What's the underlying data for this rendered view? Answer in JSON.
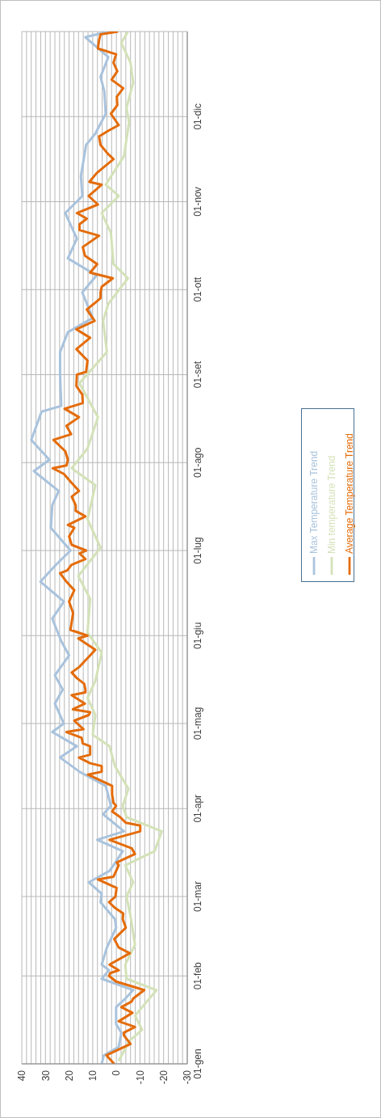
{
  "chart_data": {
    "type": "line",
    "orientation": "horizontal",
    "ylim": [
      "--01-01",
      "--12-31"
    ],
    "yticks": [
      {
        "value": "--01-01",
        "label": "01-gen"
      },
      {
        "value": "--02-01",
        "label": "01-feb"
      },
      {
        "value": "--03-01",
        "label": "01-mar"
      },
      {
        "value": "--04-01",
        "label": "01-apr"
      },
      {
        "value": "--05-01",
        "label": "01-mag"
      },
      {
        "value": "--06-01",
        "label": "01-giu"
      },
      {
        "value": "--07-01",
        "label": "01-lug"
      },
      {
        "value": "--08-01",
        "label": "01-ago"
      },
      {
        "value": "--09-01",
        "label": "01-set"
      },
      {
        "value": "--10-01",
        "label": "01-ott"
      },
      {
        "value": "--11-01",
        "label": "01-nov"
      },
      {
        "value": "--12-01",
        "label": "01-dic"
      }
    ],
    "xlim": [
      40,
      -30
    ],
    "xticks": [
      -30,
      {
        "value": -28,
        "label": null
      },
      {
        "value": -26,
        "label": null
      },
      {
        "value": -24,
        "label": null
      },
      {
        "value": -22,
        "label": null
      },
      -20,
      {
        "value": -18,
        "label": null
      },
      {
        "value": -16,
        "label": null
      },
      {
        "value": -14,
        "label": null
      },
      {
        "value": -12,
        "label": null
      },
      -10,
      {
        "value": -8,
        "label": null
      },
      {
        "value": -6,
        "label": null
      },
      {
        "value": -4,
        "label": null
      },
      {
        "value": -2,
        "label": null
      },
      0,
      {
        "value": 2,
        "label": null
      },
      {
        "value": 4,
        "label": null
      },
      {
        "value": 6,
        "label": null
      },
      {
        "value": 8,
        "label": null
      },
      10,
      {
        "value": 12,
        "label": null
      },
      {
        "value": 14,
        "label": null
      },
      {
        "value": 16,
        "label": null
      },
      {
        "value": 18,
        "label": null
      },
      20,
      {
        "value": 22,
        "label": null
      },
      {
        "value": 24,
        "label": null
      },
      {
        "value": 26,
        "label": null
      },
      {
        "value": 28,
        "label": null
      },
      30,
      {
        "value": 32,
        "label": null
      },
      {
        "value": 34,
        "label": null
      },
      {
        "value": 36,
        "label": null
      },
      {
        "value": 38,
        "label": null
      },
      40
    ],
    "grid": true,
    "legend": "right",
    "line_style": "solid",
    "series": [
      {
        "name": "Max Temperature Trend",
        "color": "#a9c3dd",
        "x": [
          "--01-01",
          "--01-04",
          "--01-07",
          "--01-12",
          "--01-15",
          "--01-21",
          "--01-24",
          "--01-27",
          "--01-31",
          "--02-03",
          "--02-05",
          "--02-11",
          "--02-18",
          "--02-21",
          "--02-27",
          "--03-02",
          "--03-06",
          "--03-10",
          "--03-12",
          "--03-17",
          "--03-21",
          "--03-24",
          "--03-30",
          "--04-02",
          "--04-09",
          "--04-14",
          "--04-19",
          "--04-23",
          "--04-28",
          "--05-01",
          "--05-08",
          "--05-13",
          "--05-18",
          "--05-25",
          "--05-30",
          "--06-07",
          "--06-13",
          "--06-20",
          "--06-26",
          "--07-01",
          "--07-09",
          "--07-17",
          "--07-22",
          "--07-29",
          "--08-02",
          "--08-09",
          "--08-19",
          "--08-21",
          "--09-01",
          "--09-09",
          "--09-16",
          "--09-21",
          "--09-30",
          "--10-06",
          "--10-12",
          "--10-19",
          "--10-28",
          "--11-03",
          "--11-10",
          "--11-21",
          "--11-25",
          "--12-02",
          "--12-10",
          "--12-15",
          "--12-22",
          "--12-29",
          "--12-31"
        ],
        "values": [
          6.2,
          5.3,
          -1,
          -2.1,
          0.1,
          0.1,
          -3.8,
          -7.1,
          6.2,
          3.1,
          6.2,
          4,
          0.1,
          0.6,
          6.7,
          6.2,
          11.7,
          2.9,
          1.2,
          -2.7,
          8.1,
          -3.2,
          5.6,
          2.3,
          4.5,
          15.6,
          23.8,
          16.7,
          27.1,
          22.2,
          26,
          22.7,
          26,
          20,
          23.3,
          27.1,
          22.2,
          32.1,
          25.5,
          19.4,
          27.7,
          27.1,
          24.4,
          34.9,
          28.3,
          36,
          31.6,
          23.3,
          23.8,
          23.8,
          20.5,
          10,
          14.4,
          8.4,
          20.5,
          16.7,
          21.6,
          14.4,
          15,
          12.8,
          8.9,
          4.5,
          5.1,
          6.7,
          3.4,
          13.1,
          3.4
        ]
      },
      {
        "name": "Min temperature Trend",
        "color": "#d4e2b8",
        "x": [
          "--01-02",
          "--01-09",
          "--01-13",
          "--01-18",
          "--01-27",
          "--01-31",
          "--02-05",
          "--02-12",
          "--02-22",
          "--03-01",
          "--03-06",
          "--03-12",
          "--03-17",
          "--03-24",
          "--03-29",
          "--04-02",
          "--04-08",
          "--04-16",
          "--04-23",
          "--04-27",
          "--05-04",
          "--05-10",
          "--05-16",
          "--05-26",
          "--06-02",
          "--06-14",
          "--06-22",
          "--07-02",
          "--07-12",
          "--07-24",
          "--07-30",
          "--08-06",
          "--08-17",
          "--08-29",
          "--09-09",
          "--09-20",
          "--09-26",
          "--10-05",
          "--10-10",
          "--10-21",
          "--10-28",
          "--11-03",
          "--11-07",
          "--11-17",
          "--11-29",
          "--12-04",
          "--12-13",
          "--12-20",
          "--12-27",
          "--12-31"
        ],
        "values": [
          -1,
          -5.4,
          -10.9,
          -7.9,
          -17,
          -4.3,
          -3.8,
          -7.9,
          -6,
          -4.3,
          -7.1,
          -3.8,
          -16.2,
          -19.2,
          -4.3,
          -2.7,
          -5.1,
          0.6,
          2.9,
          10,
          8.9,
          12.2,
          8.9,
          6.2,
          12.2,
          11.1,
          16.1,
          6.7,
          12.2,
          8.9,
          18.9,
          12.2,
          7.8,
          15.6,
          4,
          5.6,
          3.4,
          -4.9,
          1.2,
          2.3,
          6.2,
          -1,
          4.5,
          -3.2,
          -5.4,
          -4.3,
          -7.1,
          -6,
          -2.1,
          -4.9
        ]
      },
      {
        "name": "Average Temperature Trend",
        "color": "#e46c0a",
        "x": [
          "--01-01",
          "--01-04",
          "--01-08",
          "--01-11",
          "--01-12",
          "--01-14",
          "--01-16",
          "--01-19",
          "--01-21",
          "--01-23",
          "--01-24",
          "--01-27",
          "--01-30",
          "--02-01",
          "--02-02",
          "--02-03",
          "--02-05",
          "--02-09",
          "--02-11",
          "--02-14",
          "--02-18",
          "--02-21",
          "--02-23",
          "--02-25",
          "--02-27",
          "--03-01",
          "--03-04",
          "--03-07",
          "--03-08",
          "--03-12",
          "--03-13",
          "--03-16",
          "--03-18",
          "--03-21",
          "--03-24",
          "--03-26",
          "--03-27",
          "--03-29",
          "--03-31",
          "--04-02",
          "--04-03",
          "--04-06",
          "--04-09",
          "--04-13",
          "--04-14",
          "--04-16",
          "--04-17",
          "--04-19",
          "--04-20",
          "--04-23",
          "--04-24",
          "--04-26",
          "--04-28",
          "--04-29",
          "--05-02",
          "--05-04",
          "--05-05",
          "--05-06",
          "--05-08",
          "--05-11",
          "--05-12",
          "--05-13",
          "--05-15",
          "--05-17",
          "--05-19",
          "--05-21",
          "--05-25",
          "--05-27",
          "--05-31",
          "--06-01",
          "--06-03",
          "--06-09",
          "--06-13",
          "--06-17",
          "--06-20",
          "--06-23",
          "--06-24",
          "--06-26",
          "--06-28",
          "--06-30",
          "--07-01",
          "--07-03",
          "--07-06",
          "--07-09",
          "--07-10",
          "--07-13",
          "--07-15",
          "--07-17",
          "--07-20",
          "--07-22",
          "--07-25",
          "--07-28",
          "--07-30",
          "--07-31",
          "--08-02",
          "--08-05",
          "--08-09",
          "--08-11",
          "--08-14",
          "--08-17",
          "--08-20",
          "--08-22",
          "--08-25",
          "--08-28",
          "--09-01",
          "--09-02",
          "--09-06",
          "--09-10",
          "--09-14",
          "--09-17",
          "--09-20",
          "--09-24",
          "--09-26",
          "--09-28",
          "--09-30",
          "--10-02",
          "--10-05",
          "--10-07",
          "--10-10",
          "--10-13",
          "--10-16",
          "--10-20",
          "--10-22",
          "--10-24",
          "--10-26",
          "--10-28",
          "--10-31",
          "--11-03",
          "--11-05",
          "--11-07",
          "--11-08",
          "--11-11",
          "--11-12",
          "--11-16",
          "--11-18",
          "--11-21",
          "--11-24",
          "--11-26",
          "--11-28",
          "--12-02",
          "--12-05",
          "--12-08",
          "--12-11",
          "--12-14",
          "--12-17",
          "--12-20",
          "--12-23",
          "--12-25",
          "--12-28",
          "--12-30",
          "--12-31"
        ],
        "values": [
          0.9,
          4.2,
          -6,
          -3.2,
          -3.2,
          -7.9,
          -1,
          -6.8,
          -2.1,
          -6.5,
          -7.1,
          -11.8,
          0.1,
          3.1,
          2.6,
          -1,
          2.9,
          -5.7,
          -1,
          0.9,
          -4,
          -2.7,
          -2.9,
          0.6,
          3.1,
          0.4,
          -0.1,
          7.8,
          1.2,
          -1,
          -0.2,
          -7.9,
          -6.5,
          2.9,
          -10.1,
          -10.1,
          -4,
          -1.6,
          1.8,
          0.1,
          1.2,
          1.8,
          1.8,
          12,
          6.2,
          6.2,
          11.1,
          15.8,
          11.1,
          11.1,
          14.2,
          14.7,
          21.1,
          13.9,
          17.8,
          11.7,
          11.1,
          18.4,
          13.3,
          18.9,
          13.1,
          13.1,
          13.6,
          16.7,
          18.9,
          15.6,
          11.1,
          8.9,
          16.1,
          12.2,
          19.4,
          18.3,
          20,
          17.8,
          21.1,
          23.8,
          20.8,
          18.9,
          13.1,
          15.6,
          12.8,
          18.9,
          20,
          17.8,
          20.5,
          13.1,
          17.2,
          17.2,
          18.9,
          15.8,
          19.1,
          22.2,
          26.9,
          21.1,
          20.5,
          21.6,
          26.6,
          19.1,
          21.1,
          15.8,
          21.9,
          14.2,
          14.4,
          16.9,
          16.7,
          12.8,
          12.2,
          16.9,
          11.1,
          16.9,
          9.2,
          12.5,
          9.5,
          6.7,
          6.7,
          6.2,
          1.5,
          11.1,
          8.1,
          13.3,
          14.2,
          7.3,
          15.6,
          15.6,
          12.5,
          16.7,
          7.8,
          11.7,
          8.9,
          6.2,
          11.4,
          8.4,
          7,
          1.2,
          3.7,
          6.7,
          7.3,
          3.4,
          -1,
          2.3,
          -0.4,
          -0.2,
          -2.9,
          2,
          -0.4,
          1.2,
          0.1,
          7.8,
          7.3,
          6.7,
          -0.7
        ]
      }
    ]
  }
}
